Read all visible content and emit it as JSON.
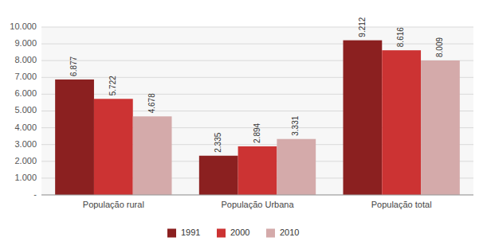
{
  "chart_data": {
    "type": "bar",
    "categories": [
      "População rural",
      "População Urbana",
      "População total"
    ],
    "series": [
      {
        "name": "1991",
        "color": "#8B2020",
        "values": [
          6877,
          2335,
          9212
        ],
        "value_labels": [
          "6.877",
          "2.335",
          "9.212"
        ]
      },
      {
        "name": "2000",
        "color": "#CC3333",
        "values": [
          5722,
          2894,
          8616
        ],
        "value_labels": [
          "5.722",
          "2.894",
          "8.616"
        ]
      },
      {
        "name": "2010",
        "color": "#D4AAAA",
        "values": [
          4678,
          3331,
          8009
        ],
        "value_labels": [
          "4.678",
          "3.331",
          "8.009"
        ]
      }
    ],
    "ylim": [
      0,
      10000
    ],
    "yticks": [
      {
        "value": 0,
        "label": "-"
      },
      {
        "value": 1000,
        "label": "1.000"
      },
      {
        "value": 2000,
        "label": "2.000"
      },
      {
        "value": 3000,
        "label": "3.000"
      },
      {
        "value": 4000,
        "label": "4.000"
      },
      {
        "value": 5000,
        "label": "5.000"
      },
      {
        "value": 6000,
        "label": "6.000"
      },
      {
        "value": 7000,
        "label": "7.000"
      },
      {
        "value": 8000,
        "label": "8.000"
      },
      {
        "value": 9000,
        "label": "9.000"
      },
      {
        "value": 10000,
        "label": "10.000"
      }
    ],
    "grid": true,
    "data_labels": true,
    "legend": "bottom"
  }
}
